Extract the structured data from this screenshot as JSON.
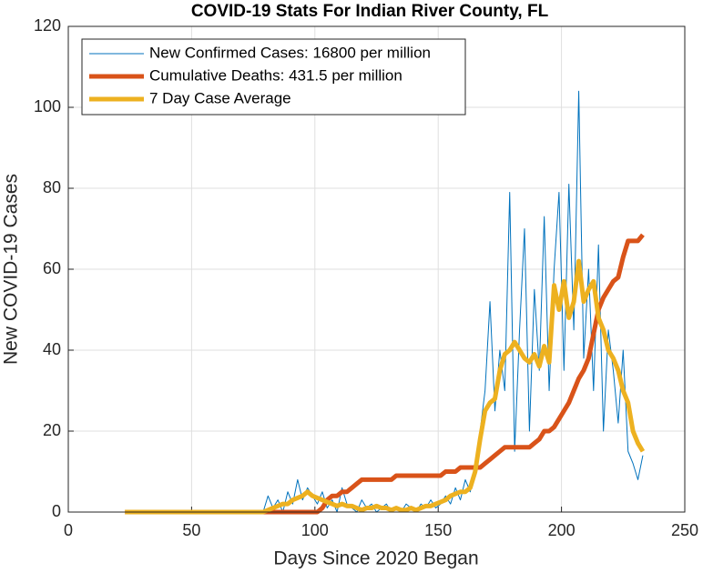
{
  "chart_data": {
    "type": "line",
    "title": "COVID-19 Stats For Indian River County, FL",
    "x_label": "Days Since 2020 Began",
    "y_label": "New COVID-19 Cases",
    "x": [
      23,
      25,
      27,
      29,
      31,
      33,
      35,
      37,
      39,
      41,
      43,
      45,
      47,
      49,
      51,
      53,
      55,
      57,
      59,
      61,
      63,
      65,
      67,
      69,
      71,
      73,
      75,
      77,
      79,
      81,
      83,
      85,
      87,
      89,
      91,
      93,
      95,
      97,
      99,
      101,
      103,
      105,
      107,
      109,
      111,
      113,
      115,
      117,
      119,
      121,
      123,
      125,
      127,
      129,
      131,
      133,
      135,
      137,
      139,
      141,
      143,
      145,
      147,
      149,
      151,
      153,
      155,
      157,
      159,
      161,
      163,
      165,
      167,
      169,
      171,
      173,
      175,
      177,
      179,
      181,
      183,
      185,
      187,
      189,
      191,
      193,
      195,
      197,
      199,
      201,
      203,
      205,
      207,
      209,
      211,
      213,
      215,
      217,
      219,
      221,
      223,
      225,
      227,
      229,
      231,
      233
    ],
    "series": [
      {
        "name": "New Confirmed Cases: 16800 per million",
        "color": "#0072bd",
        "width": 1,
        "values": [
          0,
          0,
          0,
          0,
          0,
          0,
          0,
          0,
          0,
          0,
          0,
          0,
          0,
          0,
          0,
          0,
          0,
          0,
          0,
          0,
          0,
          0,
          0,
          0,
          0,
          0,
          0,
          0,
          0,
          4,
          1,
          3,
          0,
          5,
          2,
          8,
          3,
          6,
          4,
          2,
          5,
          1,
          3,
          0,
          6,
          2,
          1,
          0,
          3,
          1,
          2,
          0,
          1,
          2,
          0,
          1,
          0,
          2,
          1,
          0,
          2,
          1,
          3,
          1,
          2,
          4,
          2,
          6,
          3,
          8,
          5,
          12,
          20,
          30,
          52,
          25,
          40,
          30,
          79,
          15,
          45,
          70,
          20,
          55,
          35,
          73,
          30,
          60,
          79,
          35,
          81,
          45,
          104,
          38,
          60,
          30,
          66,
          20,
          45,
          35,
          22,
          40,
          15,
          12,
          8,
          14
        ]
      },
      {
        "name": "Cumulative Deaths: 431.5 per million",
        "color": "#d95319",
        "width": 5,
        "values": [
          0,
          0,
          0,
          0,
          0,
          0,
          0,
          0,
          0,
          0,
          0,
          0,
          0,
          0,
          0,
          0,
          0,
          0,
          0,
          0,
          0,
          0,
          0,
          0,
          0,
          0,
          0,
          0,
          0,
          0,
          0,
          0,
          0,
          0,
          0,
          0,
          0,
          0,
          0,
          0,
          1,
          3,
          4,
          4,
          5,
          5,
          6,
          7,
          8,
          8,
          8,
          8,
          8,
          8,
          8,
          9,
          9,
          9,
          9,
          9,
          9,
          9,
          9,
          9,
          9,
          10,
          10,
          10,
          11,
          11,
          11,
          11,
          11,
          12,
          13,
          14,
          15,
          16,
          16,
          16,
          16,
          16,
          16,
          17,
          18,
          20,
          20,
          21,
          23,
          25,
          27,
          30,
          33,
          35,
          38,
          44,
          50,
          53,
          55,
          57,
          58,
          63,
          67,
          67,
          67,
          68.5
        ]
      },
      {
        "name": "7 Day Case Average",
        "color": "#edb120",
        "width": 5,
        "values": [
          0,
          0,
          0,
          0,
          0,
          0,
          0,
          0,
          0,
          0,
          0,
          0,
          0,
          0,
          0,
          0,
          0,
          0,
          0,
          0,
          0,
          0,
          0,
          0,
          0,
          0,
          0,
          0,
          0,
          0.5,
          1,
          1.5,
          2,
          2,
          3,
          3.5,
          4,
          5,
          4,
          3.5,
          3,
          2.5,
          2,
          1.5,
          2,
          1.5,
          1.5,
          1,
          0.5,
          1,
          1,
          1.5,
          1,
          1,
          0.5,
          1,
          0.5,
          0.5,
          1,
          0.5,
          1,
          1.5,
          1.5,
          2,
          2.5,
          3,
          4,
          4.5,
          5,
          5,
          6,
          10,
          18,
          25,
          27,
          28,
          35,
          39,
          40,
          42,
          40,
          38,
          37,
          39,
          36,
          41,
          37,
          56,
          50,
          57,
          48,
          52,
          62,
          52,
          55,
          57,
          48,
          45,
          40,
          38,
          35,
          30,
          27,
          20,
          17,
          15
        ]
      }
    ],
    "xlim": [
      0,
      250
    ],
    "xticks": [
      0,
      50,
      100,
      150,
      200,
      250
    ],
    "ylim": [
      0,
      120
    ],
    "yticks": [
      0,
      20,
      40,
      60,
      80,
      100,
      120
    ],
    "grid": true,
    "legend": "upper left"
  }
}
